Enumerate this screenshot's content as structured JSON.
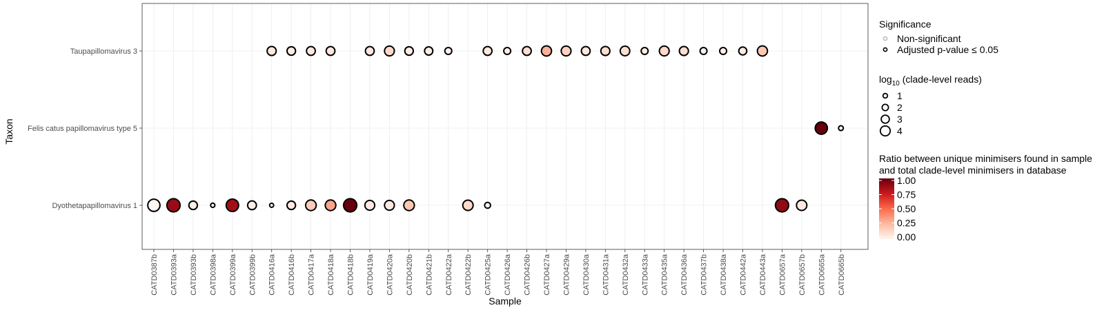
{
  "chart_data": {
    "type": "scatter",
    "xlabel": "Sample",
    "ylabel": "Taxon",
    "x_categories": [
      "CATD0387b",
      "CATD0393a",
      "CATD0393b",
      "CATD0398a",
      "CATD0399a",
      "CATD0399b",
      "CATD0416a",
      "CATD0416b",
      "CATD0417a",
      "CATD0418a",
      "CATD0418b",
      "CATD0419a",
      "CATD0420a",
      "CATD0420b",
      "CATD0421b",
      "CATD0422a",
      "CATD0422b",
      "CATD0425a",
      "CATD0426a",
      "CATD0426b",
      "CATD0427a",
      "CATD0429a",
      "CATD0430a",
      "CATD0431a",
      "CATD0432a",
      "CATD0433a",
      "CATD0435a",
      "CATD0436a",
      "CATD0437b",
      "CATD0438a",
      "CATD0442a",
      "CATD0443a",
      "CATD0657a",
      "CATD0657b",
      "CATD0665a",
      "CATD0665b"
    ],
    "y_categories": [
      "Taupapillomavirus 3",
      "Felis catus papillomavirus type 5",
      "Dyothetapapillomavirus 1"
    ],
    "grid": true,
    "points": [
      {
        "x": "CATD0387b",
        "y": "Dyothetapapillomavirus 1",
        "size": 3.6,
        "ratio": 0.0,
        "significant": true
      },
      {
        "x": "CATD0393a",
        "y": "Dyothetapapillomavirus 1",
        "size": 4.0,
        "ratio": 0.88,
        "significant": true
      },
      {
        "x": "CATD0393b",
        "y": "Dyothetapapillomavirus 1",
        "size": 2.2,
        "ratio": 0.02,
        "significant": true
      },
      {
        "x": "CATD0398a",
        "y": "Dyothetapapillomavirus 1",
        "size": 0.6,
        "ratio": 0.0,
        "significant": true
      },
      {
        "x": "CATD0399a",
        "y": "Dyothetapapillomavirus 1",
        "size": 3.7,
        "ratio": 0.85,
        "significant": true
      },
      {
        "x": "CATD0399b",
        "y": "Dyothetapapillomavirus 1",
        "size": 2.3,
        "ratio": 0.04,
        "significant": true
      },
      {
        "x": "CATD0416a",
        "y": "Dyothetapapillomavirus 1",
        "size": 0.5,
        "ratio": 0.0,
        "significant": true
      },
      {
        "x": "CATD0416b",
        "y": "Dyothetapapillomavirus 1",
        "size": 2.2,
        "ratio": 0.05,
        "significant": true
      },
      {
        "x": "CATD0417a",
        "y": "Dyothetapapillomavirus 1",
        "size": 3.0,
        "ratio": 0.18,
        "significant": true
      },
      {
        "x": "CATD0418a",
        "y": "Dyothetapapillomavirus 1",
        "size": 3.0,
        "ratio": 0.32,
        "significant": true
      },
      {
        "x": "CATD0418b",
        "y": "Dyothetapapillomavirus 1",
        "size": 4.0,
        "ratio": 1.0,
        "significant": true
      },
      {
        "x": "CATD0419a",
        "y": "Dyothetapapillomavirus 1",
        "size": 2.7,
        "ratio": 0.05,
        "significant": true
      },
      {
        "x": "CATD0420a",
        "y": "Dyothetapapillomavirus 1",
        "size": 2.7,
        "ratio": 0.05,
        "significant": true
      },
      {
        "x": "CATD0420b",
        "y": "Dyothetapapillomavirus 1",
        "size": 3.0,
        "ratio": 0.2,
        "significant": true
      },
      {
        "x": "CATD0422b",
        "y": "Dyothetapapillomavirus 1",
        "size": 2.9,
        "ratio": 0.12,
        "significant": true
      },
      {
        "x": "CATD0425a",
        "y": "Dyothetapapillomavirus 1",
        "size": 1.2,
        "ratio": 0.0,
        "significant": true
      },
      {
        "x": "CATD0657a",
        "y": "Dyothetapapillomavirus 1",
        "size": 4.0,
        "ratio": 0.9,
        "significant": true
      },
      {
        "x": "CATD0657b",
        "y": "Dyothetapapillomavirus 1",
        "size": 2.9,
        "ratio": 0.06,
        "significant": true
      },
      {
        "x": "CATD0665a",
        "y": "Felis catus papillomavirus type 5",
        "size": 3.6,
        "ratio": 1.0,
        "significant": true
      },
      {
        "x": "CATD0665b",
        "y": "Felis catus papillomavirus type 5",
        "size": 0.8,
        "ratio": 0.0,
        "significant": true
      },
      {
        "x": "CATD0416a",
        "y": "Taupapillomavirus 3",
        "size": 2.4,
        "ratio": 0.05,
        "significant": true
      },
      {
        "x": "CATD0416b",
        "y": "Taupapillomavirus 3",
        "size": 2.2,
        "ratio": 0.04,
        "significant": true
      },
      {
        "x": "CATD0417a",
        "y": "Taupapillomavirus 3",
        "size": 2.3,
        "ratio": 0.06,
        "significant": true
      },
      {
        "x": "CATD0418a",
        "y": "Taupapillomavirus 3",
        "size": 2.3,
        "ratio": 0.06,
        "significant": true
      },
      {
        "x": "CATD0419a",
        "y": "Taupapillomavirus 3",
        "size": 2.3,
        "ratio": 0.06,
        "significant": true
      },
      {
        "x": "CATD0420a",
        "y": "Taupapillomavirus 3",
        "size": 2.7,
        "ratio": 0.12,
        "significant": true
      },
      {
        "x": "CATD0420b",
        "y": "Taupapillomavirus 3",
        "size": 2.2,
        "ratio": 0.04,
        "significant": true
      },
      {
        "x": "CATD0421b",
        "y": "Taupapillomavirus 3",
        "size": 2.1,
        "ratio": 0.04,
        "significant": true
      },
      {
        "x": "CATD0422a",
        "y": "Taupapillomavirus 3",
        "size": 1.6,
        "ratio": 0.02,
        "significant": true
      },
      {
        "x": "CATD0425a",
        "y": "Taupapillomavirus 3",
        "size": 2.3,
        "ratio": 0.06,
        "significant": true
      },
      {
        "x": "CATD0426a",
        "y": "Taupapillomavirus 3",
        "size": 1.6,
        "ratio": 0.03,
        "significant": true
      },
      {
        "x": "CATD0426b",
        "y": "Taupapillomavirus 3",
        "size": 2.3,
        "ratio": 0.1,
        "significant": true
      },
      {
        "x": "CATD0427a",
        "y": "Taupapillomavirus 3",
        "size": 2.8,
        "ratio": 0.28,
        "significant": true
      },
      {
        "x": "CATD0429a",
        "y": "Taupapillomavirus 3",
        "size": 2.7,
        "ratio": 0.15,
        "significant": true
      },
      {
        "x": "CATD0430a",
        "y": "Taupapillomavirus 3",
        "size": 2.3,
        "ratio": 0.06,
        "significant": true
      },
      {
        "x": "CATD0431a",
        "y": "Taupapillomavirus 3",
        "size": 2.4,
        "ratio": 0.1,
        "significant": true
      },
      {
        "x": "CATD0432a",
        "y": "Taupapillomavirus 3",
        "size": 2.6,
        "ratio": 0.1,
        "significant": true
      },
      {
        "x": "CATD0433a",
        "y": "Taupapillomavirus 3",
        "size": 1.6,
        "ratio": 0.04,
        "significant": true
      },
      {
        "x": "CATD0435a",
        "y": "Taupapillomavirus 3",
        "size": 2.7,
        "ratio": 0.12,
        "significant": true
      },
      {
        "x": "CATD0436a",
        "y": "Taupapillomavirus 3",
        "size": 2.4,
        "ratio": 0.1,
        "significant": true
      },
      {
        "x": "CATD0437b",
        "y": "Taupapillomavirus 3",
        "size": 1.6,
        "ratio": 0.03,
        "significant": true
      },
      {
        "x": "CATD0438a",
        "y": "Taupapillomavirus 3",
        "size": 1.6,
        "ratio": 0.02,
        "significant": true
      },
      {
        "x": "CATD0442a",
        "y": "Taupapillomavirus 3",
        "size": 2.0,
        "ratio": 0.04,
        "significant": true
      },
      {
        "x": "CATD0443a",
        "y": "Taupapillomavirus 3",
        "size": 2.8,
        "ratio": 0.2,
        "significant": true
      }
    ],
    "legends": {
      "significance": {
        "title": "Significance",
        "items": [
          {
            "label": "Non-significant",
            "significant": false
          },
          {
            "label": "Adjusted p-value ≤ 0.05",
            "significant": true
          }
        ]
      },
      "size": {
        "title_prefix": "log",
        "title_sub": "10",
        "title_suffix": " (clade-level reads)",
        "items": [
          {
            "label": "1",
            "value": 1
          },
          {
            "label": "2",
            "value": 2
          },
          {
            "label": "3",
            "value": 3
          },
          {
            "label": "4",
            "value": 4
          }
        ]
      },
      "color": {
        "title_line1": "Ratio between unique minimisers found in sample",
        "title_line2": "and total clade-level minimisers in database",
        "range": [
          0,
          1
        ],
        "ticks": [
          "1.00",
          "0.75",
          "0.50",
          "0.25",
          "0.00"
        ],
        "tick_values": [
          1.0,
          0.75,
          0.5,
          0.25,
          0.0
        ],
        "colors": [
          "#fff5f0",
          "#fcbba1",
          "#fb6a4a",
          "#cb181d",
          "#67000d"
        ]
      }
    }
  }
}
